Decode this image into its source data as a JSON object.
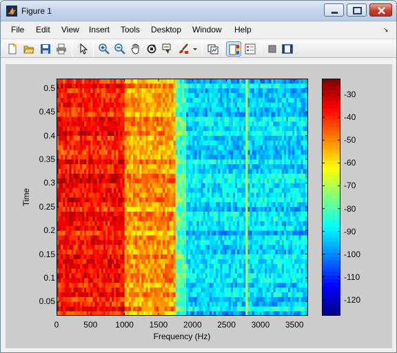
{
  "window": {
    "title": "Figure 1",
    "colors": {
      "titlebar": "#c3d4ea",
      "figure_bg": "#cccccc",
      "close": "#c6402b"
    }
  },
  "menubar": {
    "items": [
      "File",
      "Edit",
      "View",
      "Insert",
      "Tools",
      "Desktop",
      "Window",
      "Help"
    ],
    "corner_glyph": "↘"
  },
  "toolbar": {
    "buttons": [
      {
        "name": "new-figure-icon"
      },
      {
        "name": "open-file-icon"
      },
      {
        "name": "save-icon"
      },
      {
        "name": "print-icon"
      },
      {
        "name": "edit-plot-arrow-icon"
      },
      {
        "name": "zoom-in-icon"
      },
      {
        "name": "zoom-out-icon"
      },
      {
        "name": "pan-hand-icon"
      },
      {
        "name": "rotate-3d-icon"
      },
      {
        "name": "data-cursor-icon"
      },
      {
        "name": "brush-icon"
      },
      {
        "name": "brush-dropdown-icon"
      },
      {
        "name": "link-plot-icon"
      },
      {
        "name": "colorbar-icon"
      },
      {
        "name": "legend-icon"
      },
      {
        "name": "hide-plot-tools-icon"
      },
      {
        "name": "show-plot-tools-icon"
      }
    ]
  },
  "chart_data": {
    "type": "heatmap",
    "title": "",
    "xlabel": "Frequency (Hz)",
    "ylabel": "Time",
    "xlim": [
      0,
      3700
    ],
    "ylim": [
      0.02,
      0.52
    ],
    "x_ticks": [
      0,
      500,
      1000,
      1500,
      2000,
      2500,
      3000,
      3500
    ],
    "y_ticks": [
      0.05,
      0.1,
      0.15,
      0.2,
      0.25,
      0.3,
      0.35,
      0.4,
      0.45,
      0.5
    ],
    "colormap": "jet",
    "clim": [
      -127,
      -23
    ],
    "colorbar_ticks": [
      -30,
      -40,
      -50,
      -60,
      -70,
      -80,
      -90,
      -100,
      -110,
      -120
    ],
    "time_bins": 50,
    "freq_bin_width_hz": 31.25,
    "level_profile": [
      {
        "from_hz": 0,
        "to_hz": 1000,
        "level_db": -38
      },
      {
        "from_hz": 1000,
        "to_hz": 1750,
        "level_db": -52
      },
      {
        "from_hz": 1750,
        "to_hz": 1900,
        "level_db": -80
      },
      {
        "from_hz": 1900,
        "to_hz": 3700,
        "level_db": -92
      }
    ],
    "bright_line_hz": 2800,
    "bright_line_db": -70
  }
}
